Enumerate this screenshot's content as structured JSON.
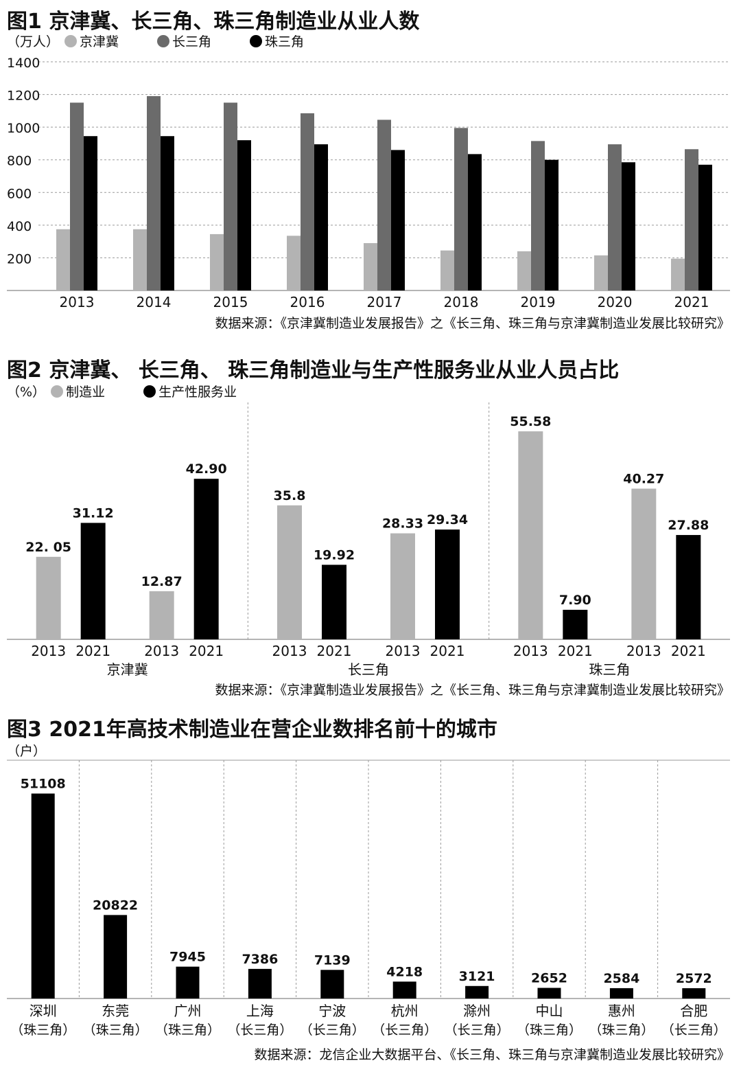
{
  "chart_data": [
    {
      "type": "bar",
      "title": "图1 京津冀、长三角、珠三角制造业从业人数",
      "unit": "（万人）",
      "categories": [
        "2013",
        "2014",
        "2015",
        "2016",
        "2017",
        "2018",
        "2019",
        "2020",
        "2021"
      ],
      "series": [
        {
          "name": "京津冀",
          "color": "#b3b3b3",
          "values": [
            375,
            375,
            345,
            335,
            290,
            245,
            240,
            215,
            195
          ]
        },
        {
          "name": "长三角",
          "color": "#6b6b6b",
          "values": [
            1150,
            1190,
            1150,
            1085,
            1045,
            995,
            915,
            895,
            865
          ]
        },
        {
          "name": "珠三角",
          "color": "#000000",
          "values": [
            945,
            945,
            920,
            895,
            860,
            835,
            800,
            785,
            770
          ]
        }
      ],
      "ylim": [
        0,
        1400
      ],
      "yticks": [
        "200",
        "400",
        "600",
        "800",
        "1000",
        "1200",
        "1400"
      ],
      "grid": true,
      "source": "数据来源：《京津冀制造业发展报告》之《长三角、珠三角与京津冀制造业发展比较研究》"
    },
    {
      "type": "bar",
      "title": "图2 京津冀、 长三角、 珠三角制造业与生产性服务业从业人员占比",
      "unit": "（%）",
      "legend": [
        {
          "name": "制造业",
          "color": "#b3b3b3"
        },
        {
          "name": "生产性服务业",
          "color": "#000000"
        }
      ],
      "groups": [
        {
          "name": "京津冀",
          "bars": [
            {
              "year": "2013",
              "label": "22. 05",
              "value": 22.05,
              "color": "#b3b3b3"
            },
            {
              "year": "2021",
              "label": "31.12",
              "value": 31.12,
              "color": "#000000"
            },
            {
              "year": "2013",
              "label": "12.87",
              "value": 12.87,
              "color": "#b3b3b3"
            },
            {
              "year": "2021",
              "label": "42.90",
              "value": 42.9,
              "color": "#000000"
            }
          ]
        },
        {
          "name": "长三角",
          "bars": [
            {
              "year": "2013",
              "label": "35.8",
              "value": 35.8,
              "color": "#b3b3b3"
            },
            {
              "year": "2021",
              "label": "19.92",
              "value": 19.92,
              "color": "#000000"
            },
            {
              "year": "2013",
              "label": "28.33",
              "value": 28.33,
              "color": "#b3b3b3"
            },
            {
              "year": "2021",
              "label": "29.34",
              "value": 29.34,
              "color": "#000000"
            }
          ]
        },
        {
          "name": "珠三角",
          "bars": [
            {
              "year": "2013",
              "label": "55.58",
              "value": 55.58,
              "color": "#b3b3b3"
            },
            {
              "year": "2021",
              "label": "7.90",
              "value": 7.9,
              "color": "#000000"
            },
            {
              "year": "2013",
              "label": "40.27",
              "value": 40.27,
              "color": "#b3b3b3"
            },
            {
              "year": "2021",
              "label": "27.88",
              "value": 27.88,
              "color": "#000000"
            }
          ]
        }
      ],
      "ylim": [
        0,
        60
      ],
      "source": "数据来源：《京津冀制造业发展报告》之《长三角、珠三角与京津冀制造业发展比较研究》"
    },
    {
      "type": "bar",
      "title": "图3 2021年高技术制造业在营企业数排名前十的城市",
      "unit": "（户）",
      "categories": [
        {
          "city": "深圳",
          "region": "（珠三角）"
        },
        {
          "city": "东莞",
          "region": "（珠三角）"
        },
        {
          "city": "广州",
          "region": "（珠三角）"
        },
        {
          "city": "上海",
          "region": "（长三角）"
        },
        {
          "city": "宁波",
          "region": "（长三角）"
        },
        {
          "city": "杭州",
          "region": "（长三角）"
        },
        {
          "city": "滁州",
          "region": "（长三角）"
        },
        {
          "city": "中山",
          "region": "（珠三角）"
        },
        {
          "city": "惠州",
          "region": "（珠三角）"
        },
        {
          "city": "合肥",
          "region": "（长三角）"
        }
      ],
      "values": [
        51108,
        20822,
        7945,
        7386,
        7139,
        4218,
        3121,
        2652,
        2584,
        2572
      ],
      "color": "#000000",
      "ylim": [
        0,
        56000
      ],
      "source": "数据来源：龙信企业大数据平台、《长三角、珠三角与京津冀制造业发展比较研究》"
    }
  ]
}
